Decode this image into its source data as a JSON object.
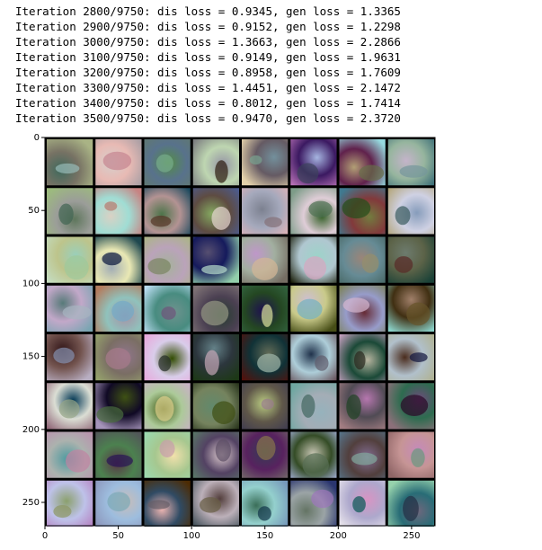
{
  "log": [
    "Iteration 2800/9750: dis loss = 0.9345, gen loss = 1.3365",
    "Iteration 2900/9750: dis loss = 0.9152, gen loss = 1.2298",
    "Iteration 3000/9750: dis loss = 1.3663, gen loss = 2.2866",
    "Iteration 3100/9750: dis loss = 0.9149, gen loss = 1.9631",
    "Iteration 3200/9750: dis loss = 0.8958, gen loss = 1.7609",
    "Iteration 3300/9750: dis loss = 1.4451, gen loss = 2.1472",
    "Iteration 3400/9750: dis loss = 0.8012, gen loss = 1.7414",
    "Iteration 3500/9750: dis loss = 0.9470, gen loss = 2.3720"
  ],
  "chart_data": {
    "type": "image",
    "xlim": [
      0,
      266
    ],
    "ylim": [
      266,
      0
    ],
    "xticks": [
      0,
      50,
      100,
      150,
      200,
      250
    ],
    "yticks": [
      0,
      50,
      100,
      150,
      200,
      250
    ]
  }
}
